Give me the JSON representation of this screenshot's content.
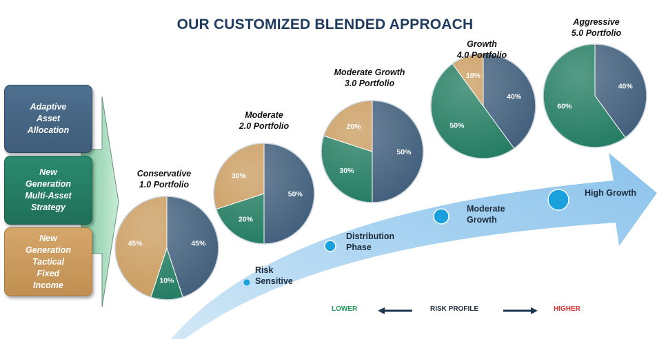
{
  "title": "OUR CUSTOMIZED BLENDED APPROACH",
  "legend": [
    {
      "label": "Adaptive\nAsset\nAllocation",
      "color": "#3f5d7a"
    },
    {
      "label": "New\nGeneration\nMulti-Asset\nStrategy",
      "color": "#1f7a5e"
    },
    {
      "label": "New\nGeneration\nTactical\nFixed\nIncome",
      "color": "#c99a5c"
    }
  ],
  "portfolios": [
    {
      "name": "Conservative\n1.0 Portfolio",
      "slices": [
        {
          "pct": 45,
          "label": "45%",
          "color": "#3f5d7a"
        },
        {
          "pct": 10,
          "label": "10%",
          "color": "#1f7a5e"
        },
        {
          "pct": 45,
          "label": "45%",
          "color": "#c99a5c"
        }
      ]
    },
    {
      "name": "Moderate\n2.0 Portfolio",
      "slices": [
        {
          "pct": 50,
          "label": "50%",
          "color": "#3f5d7a"
        },
        {
          "pct": 20,
          "label": "20%",
          "color": "#1f7a5e"
        },
        {
          "pct": 30,
          "label": "30%",
          "color": "#c99a5c"
        }
      ]
    },
    {
      "name": "Moderate Growth\n3.0 Portfolio",
      "slices": [
        {
          "pct": 50,
          "label": "50%",
          "color": "#3f5d7a"
        },
        {
          "pct": 30,
          "label": "30%",
          "color": "#1f7a5e"
        },
        {
          "pct": 20,
          "label": "20%",
          "color": "#c99a5c"
        }
      ]
    },
    {
      "name": "Growth\n4.0 Portfolio",
      "slices": [
        {
          "pct": 40,
          "label": "40%",
          "color": "#3f5d7a"
        },
        {
          "pct": 50,
          "label": "50%",
          "color": "#1f7a5e"
        },
        {
          "pct": 10,
          "label": "10%",
          "color": "#c99a5c"
        }
      ]
    },
    {
      "name": "Aggressive\n5.0 Portfolio",
      "slices": [
        {
          "pct": 40,
          "label": "40%",
          "color": "#3f5d7a"
        },
        {
          "pct": 60,
          "label": "60%",
          "color": "#1f7a5e"
        }
      ]
    }
  ],
  "stages": [
    "Risk\nSensitive",
    "Distribution\nPhase",
    "Moderate\nGrowth",
    "High Growth"
  ],
  "risk_profile": {
    "lower": "LOWER",
    "lower_color": "#1f9a5a",
    "label": "RISK PROFILE",
    "higher": "HIGHER",
    "higher_color": "#e03030"
  }
}
